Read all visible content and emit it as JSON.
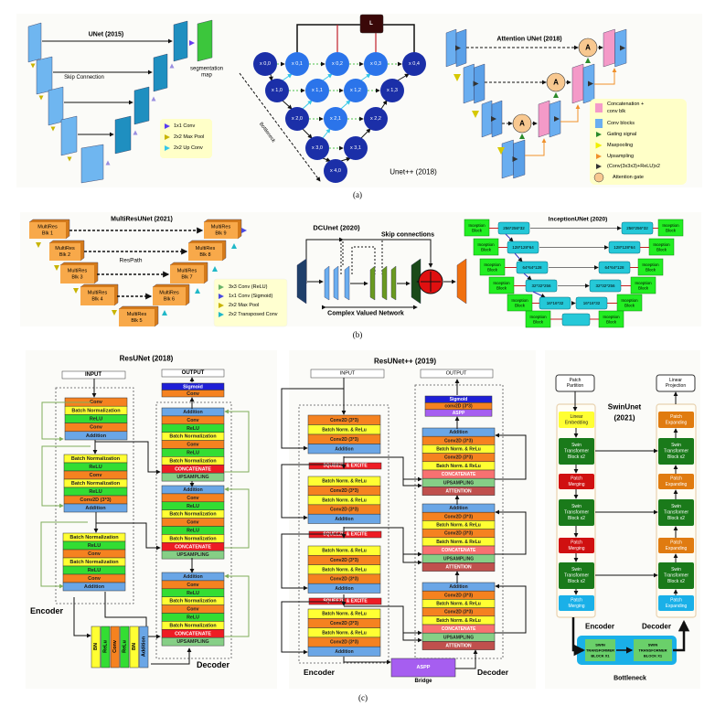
{
  "captions": {
    "a": "(a)",
    "b": "(b)",
    "c": "(c)"
  },
  "unet": {
    "title": "UNet (2015)",
    "skip_label": "Skip Connection",
    "output_label": [
      "segmentation",
      "map"
    ],
    "legend": [
      "1x1 Conv",
      "2x2 Max Pool",
      "2x2 Up Conv"
    ]
  },
  "unetpp": {
    "title": "Unet++ (2018)",
    "loss_label": "L",
    "bottleneck_label": "Bottleneck",
    "nodes": [
      [
        "x 0,0",
        "x 0,1",
        "x 0,2",
        "x 0,3",
        "x 0,4"
      ],
      [
        "x 1,0",
        "x 1,1",
        "x 1,2",
        "x 1,3"
      ],
      [
        "x 2,0",
        "x 2,1",
        "x 2,2"
      ],
      [
        "x 3,0",
        "x 3,1"
      ],
      [
        "x 4,0"
      ]
    ]
  },
  "attention_unet": {
    "title": "Attention UNet (2018)",
    "gate_label": "A",
    "legend": [
      "Concatenation +",
      "conv blk",
      "Conv blocks",
      "Gating signal",
      "Maxpooling",
      "Upsampling",
      "(Conv(3x3x3)+ReLU)x2",
      "Attention gate"
    ]
  },
  "multiresunet": {
    "title": "MultiResUNet (2021)",
    "respath_label": "ResPath",
    "encoder_blocks": [
      [
        "MultiRes",
        "Blk 1"
      ],
      [
        "MultiRes",
        "Blk 2"
      ],
      [
        "MultiRes",
        "Blk 3"
      ],
      [
        "MultiRes",
        "Blk 4"
      ],
      [
        "MultiRes",
        "Blk 5"
      ]
    ],
    "decoder_blocks": [
      [
        "MultiRes",
        "Blk 9"
      ],
      [
        "MultiRes",
        "Blk 8"
      ],
      [
        "MultiRes",
        "Blk 7"
      ],
      [
        "MultiRes",
        "Blk 6"
      ]
    ],
    "legend": [
      "3x3 Conv (ReLU)",
      "1x1 Conv (Sigmoid)",
      "2x2 Max Pool",
      "2x2 Transposed Conv"
    ]
  },
  "dcunet": {
    "title": "DCUnet (2020)",
    "skip_label": "Skip connections",
    "network_label": "Complex Valued Network"
  },
  "inceptionunet": {
    "title": "InceptionUNet (2020)",
    "block_label": [
      "Inception",
      "Block"
    ],
    "encoder_dims": [
      "256*256*32",
      "128*128*64",
      "64*64*128",
      "32*32*256",
      "16*16*32"
    ],
    "decoder_dims": [
      "256*256*32",
      "128*128*64",
      "64*64*128",
      "32*32*256",
      "16*16*32"
    ]
  },
  "resunet": {
    "title": "ResUNet (2018)",
    "input": "INPUT",
    "output": "OUTPUT",
    "encoder_label": "Encoder",
    "decoder_label": "Decoder",
    "encoder_stacks": [
      [
        "Conv",
        "Batch Normalization",
        "ReLU",
        "Conv",
        "Addition"
      ],
      [
        "Batch Normalization",
        "ReLU",
        "Conv",
        "Batch Normalization",
        "ReLU",
        "Conv2D (3*3)",
        "Addition"
      ],
      [
        "Batch Normalization",
        "ReLU",
        "Conv",
        "Batch Normalization",
        "ReLU",
        "Conv",
        "Addition"
      ]
    ],
    "output_head": [
      "Sigmoid",
      "Conv"
    ],
    "decoder_stacks": [
      [
        "Addition",
        "Conv",
        "ReLU",
        "Batch Normalization",
        "Conv",
        "ReLU",
        "Batch Normalization",
        "CONCATENATE",
        "UPSAMPLING"
      ],
      [
        "Addition",
        "Conv",
        "ReLU",
        "Batch Normalization",
        "Conv",
        "ReLU",
        "Batch Normalization",
        "CONCATENATE",
        "UPSAMPLING"
      ],
      [
        "Addition",
        "Conv",
        "ReLU",
        "Batch Normalization",
        "Conv",
        "ReLU",
        "Batch Normalization",
        "CONCATENATE",
        "UPSAMPLING"
      ]
    ],
    "bridge": [
      "BN",
      "ReLu",
      "Conv",
      "ReLu",
      "BN",
      "Addition"
    ]
  },
  "resunetpp": {
    "title": "ResUNet++ (2019)",
    "input": "INPUT",
    "output": "OUTPUT",
    "encoder_label": "Encoder",
    "decoder_label": "Decoder",
    "squeeze_excite": "SQUEEZE & EXCITE",
    "encoder_stacks": [
      [
        "Conv2D (3*3)",
        "Batch Norm. & ReLu",
        "Conv2D (3*3)",
        "Addition"
      ],
      [
        "Batch Norm. & ReLu",
        "Conv2D (3*3)",
        "Batch Norm. & ReLu",
        "Conv2D (3*3)",
        "Addition"
      ],
      [
        "Batch Norm. & ReLu",
        "Conv2D (3*3)",
        "Batch Norm. & ReLu",
        "Conv2D (3*3)",
        "Addition"
      ],
      [
        "Batch Norm. & ReLu",
        "Conv2D (3*3)",
        "Batch Norm. & ReLu",
        "Conv2D (3*3)",
        "Addition"
      ]
    ],
    "output_head": [
      "Sigmoid",
      "conv2D (3*3)",
      "ASPP"
    ],
    "decoder_stacks": [
      [
        "Addition",
        "Conv2D (3*3)",
        "Batch Norm. & ReLu",
        "Conv2D (3*3)",
        "Batch Norm. & ReLu",
        "CONCATENATE",
        "UPSAMPLING",
        "ATTENTION"
      ],
      [
        "Addition",
        "Conv2D (3*3)",
        "Batch Norm. & ReLu",
        "Conv2D (3*3)",
        "Batch Norm. & ReLu",
        "CONCATENATE",
        "UPSAMPLING",
        "ATTENTION"
      ],
      [
        "Addition",
        "Conv2D (3*3)",
        "Batch Norm. & ReLu",
        "Conv2D (3*3)",
        "Batch Norm. & ReLu",
        "CONCATENATE",
        "UPSAMPLING",
        "ATTENTION"
      ]
    ],
    "bridge": "ASPP",
    "bridge_label": "Bridge"
  },
  "swinunet": {
    "title": [
      "SwinUnet",
      "(2021)"
    ],
    "input": [
      "Patch",
      "Partition"
    ],
    "output": [
      "Linear",
      "Projection"
    ],
    "encoder_label": "Encoder",
    "decoder_label": "Decoder",
    "bottleneck_label": "Bottleneck",
    "encoder_blocks": [
      [
        "Linear",
        "Embedding"
      ],
      [
        "Swin",
        "Transformer",
        "Block x2"
      ],
      [
        "Patch",
        "Merging"
      ],
      [
        "Swin",
        "Transformer",
        "Block x2"
      ],
      [
        "Patch",
        "Merging"
      ],
      [
        "Swin",
        "Transformer",
        "Block x2"
      ],
      [
        "Patch",
        "Merging"
      ]
    ],
    "decoder_blocks": [
      [
        "Patch",
        "Expanding"
      ],
      [
        "Swin",
        "Transformer",
        "Block x2"
      ],
      [
        "Patch",
        "Expanding"
      ],
      [
        "Swin",
        "Transformer",
        "Block x2"
      ],
      [
        "Patch",
        "Expanding"
      ],
      [
        "Swin",
        "Transformer",
        "Block x2"
      ],
      [
        "Patch",
        "Expanding"
      ]
    ],
    "bottleneck_blocks": [
      [
        "SWIN",
        "TRANSFORMER",
        "BLOCK X1"
      ],
      [
        "SWIN",
        "TRANSFORMER",
        "BLOCK X1"
      ]
    ]
  },
  "colors": {
    "conv": "#f58220",
    "batch_norm": "#ffff33",
    "relu": "#33dd33",
    "addition": "#6aa6e6",
    "concatenate": "#ee1c24",
    "upsampling": "#86cf86",
    "attention": "#c0504d",
    "sigmoid": "#1f1fd6",
    "aspp": "#a65ef0",
    "unet_blue": "#6fb6f0",
    "unetpp_node": "#1b2fa8"
  }
}
